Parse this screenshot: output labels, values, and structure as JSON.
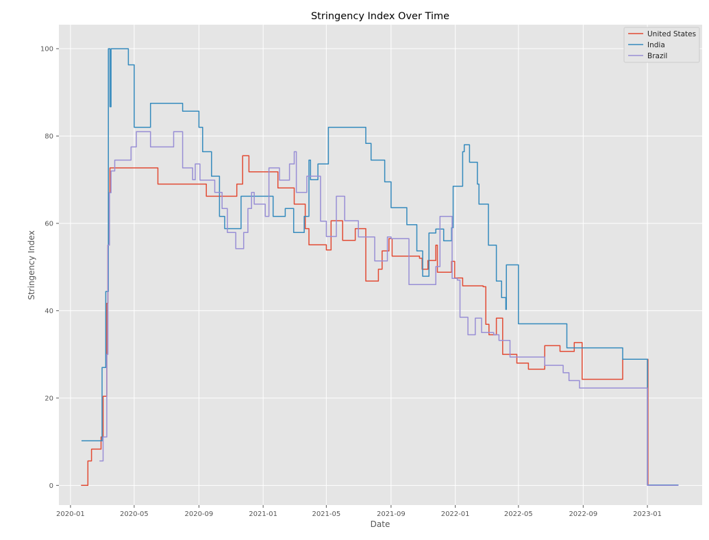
{
  "chart_data": {
    "type": "line",
    "title": "Stringency Index Over Time",
    "xlabel": "Date",
    "ylabel": "Stringency Index",
    "xlim": [
      "2019-12-10",
      "2023-04-15"
    ],
    "ylim": [
      -4.5,
      105.5
    ],
    "x_ticks": [
      "2020-01",
      "2020-05",
      "2020-09",
      "2021-01",
      "2021-05",
      "2021-09",
      "2022-01",
      "2022-05",
      "2022-09",
      "2023-01"
    ],
    "y_ticks": [
      0,
      20,
      40,
      60,
      80,
      100
    ],
    "grid": true,
    "legend_position": "top-right",
    "background_color": "#e5e5e5",
    "series": [
      {
        "name": "United States",
        "color": "#e24a33",
        "points": [
          [
            "2020-01-21",
            0
          ],
          [
            "2020-02-03",
            5.6
          ],
          [
            "2020-02-10",
            8.3
          ],
          [
            "2020-02-28",
            11.1
          ],
          [
            "2020-03-03",
            20.4
          ],
          [
            "2020-03-08",
            20.4
          ],
          [
            "2020-03-10",
            41.7
          ],
          [
            "2020-03-12",
            55
          ],
          [
            "2020-03-14",
            67
          ],
          [
            "2020-03-16",
            72.7
          ],
          [
            "2020-06-15",
            69
          ],
          [
            "2020-09-15",
            66.2
          ],
          [
            "2020-11-12",
            69
          ],
          [
            "2020-11-23",
            75.5
          ],
          [
            "2020-12-05",
            71.8
          ],
          [
            "2021-01-29",
            68.1
          ],
          [
            "2021-03-01",
            64.4
          ],
          [
            "2021-03-22",
            58.8
          ],
          [
            "2021-03-29",
            55.1
          ],
          [
            "2021-05-01",
            53.9
          ],
          [
            "2021-05-10",
            60.6
          ],
          [
            "2021-06-01",
            56.1
          ],
          [
            "2021-06-25",
            58.8
          ],
          [
            "2021-07-15",
            46.8
          ],
          [
            "2021-08-08",
            49.5
          ],
          [
            "2021-08-15",
            53.7
          ],
          [
            "2021-08-28",
            56.5
          ],
          [
            "2021-09-03",
            52.5
          ],
          [
            "2021-10-25",
            52
          ],
          [
            "2021-10-30",
            49.5
          ],
          [
            "2021-11-10",
            51.5
          ],
          [
            "2021-11-25",
            55
          ],
          [
            "2021-11-28",
            48.8
          ],
          [
            "2021-12-25",
            51.3
          ],
          [
            "2021-12-31",
            47.5
          ],
          [
            "2022-01-15",
            45.7
          ],
          [
            "2022-02-23",
            45.5
          ],
          [
            "2022-02-28",
            36.9
          ],
          [
            "2022-03-06",
            34.5
          ],
          [
            "2022-03-20",
            38.3
          ],
          [
            "2022-04-01",
            30
          ],
          [
            "2022-04-28",
            28
          ],
          [
            "2022-05-20",
            26.6
          ],
          [
            "2022-06-20",
            32
          ],
          [
            "2022-07-19",
            30.7
          ],
          [
            "2022-08-15",
            32.7
          ],
          [
            "2022-08-30",
            24.3
          ],
          [
            "2022-11-15",
            28.9
          ],
          [
            "2022-12-31",
            28.9
          ],
          [
            "2023-01-02",
            0.1
          ],
          [
            "2023-03-01",
            0.1
          ]
        ]
      },
      {
        "name": "India",
        "color": "#348abd",
        "points": [
          [
            "2020-01-22",
            10.2
          ],
          [
            "2020-02-28",
            10.2
          ],
          [
            "2020-03-01",
            27
          ],
          [
            "2020-03-08",
            44.4
          ],
          [
            "2020-03-13",
            100
          ],
          [
            "2020-03-16",
            86.7
          ],
          [
            "2020-03-18",
            100
          ],
          [
            "2020-04-20",
            96.3
          ],
          [
            "2020-05-01",
            82
          ],
          [
            "2020-06-01",
            87.5
          ],
          [
            "2020-08-01",
            85.7
          ],
          [
            "2020-09-01",
            82
          ],
          [
            "2020-09-08",
            76.4
          ],
          [
            "2020-09-25",
            70.8
          ],
          [
            "2020-10-10",
            61.6
          ],
          [
            "2020-10-20",
            58.8
          ],
          [
            "2020-11-20",
            66.2
          ],
          [
            "2021-01-20",
            61.6
          ],
          [
            "2021-02-12",
            63.4
          ],
          [
            "2021-02-28",
            57.9
          ],
          [
            "2021-03-20",
            61.6
          ],
          [
            "2021-03-29",
            74.5
          ],
          [
            "2021-04-01",
            70
          ],
          [
            "2021-04-15",
            73.6
          ],
          [
            "2021-05-05",
            82
          ],
          [
            "2021-07-15",
            78.3
          ],
          [
            "2021-07-25",
            74.5
          ],
          [
            "2021-08-20",
            69.5
          ],
          [
            "2021-09-01",
            63.6
          ],
          [
            "2021-10-01",
            59.7
          ],
          [
            "2021-10-20",
            53.7
          ],
          [
            "2021-10-31",
            47.9
          ],
          [
            "2021-11-12",
            57.8
          ],
          [
            "2021-11-25",
            58.7
          ],
          [
            "2021-12-10",
            56
          ],
          [
            "2021-12-25",
            59
          ],
          [
            "2021-12-28",
            68.5
          ],
          [
            "2022-01-15",
            76.4
          ],
          [
            "2022-01-18",
            78
          ],
          [
            "2022-01-28",
            74
          ],
          [
            "2022-02-12",
            69
          ],
          [
            "2022-02-15",
            64.4
          ],
          [
            "2022-03-05",
            55
          ],
          [
            "2022-03-20",
            46.8
          ],
          [
            "2022-03-30",
            43
          ],
          [
            "2022-04-07",
            40.3
          ],
          [
            "2022-04-08",
            50.5
          ],
          [
            "2022-05-01",
            37
          ],
          [
            "2022-08-01",
            31.5
          ],
          [
            "2022-11-15",
            28.9
          ],
          [
            "2022-12-31",
            28.9
          ],
          [
            "2023-01-01",
            0.1
          ],
          [
            "2023-03-01",
            0.1
          ]
        ]
      },
      {
        "name": "Brazil",
        "color": "#988ed5",
        "points": [
          [
            "2020-02-25",
            5.6
          ],
          [
            "2020-03-03",
            11.1
          ],
          [
            "2020-03-08",
            11.1
          ],
          [
            "2020-03-10",
            30
          ],
          [
            "2020-03-12",
            55
          ],
          [
            "2020-03-15",
            67
          ],
          [
            "2020-03-18",
            72
          ],
          [
            "2020-03-25",
            74.5
          ],
          [
            "2020-04-25",
            77.5
          ],
          [
            "2020-05-05",
            81
          ],
          [
            "2020-06-01",
            77.5
          ],
          [
            "2020-07-15",
            81
          ],
          [
            "2020-08-01",
            72.7
          ],
          [
            "2020-08-20",
            70
          ],
          [
            "2020-08-25",
            73.6
          ],
          [
            "2020-09-03",
            69.9
          ],
          [
            "2020-10-01",
            67.1
          ],
          [
            "2020-10-15",
            63.4
          ],
          [
            "2020-10-25",
            57.9
          ],
          [
            "2020-11-10",
            54.2
          ],
          [
            "2020-11-25",
            57.9
          ],
          [
            "2020-12-03",
            63.4
          ],
          [
            "2020-12-10",
            67.1
          ],
          [
            "2020-12-15",
            64.4
          ],
          [
            "2021-01-05",
            61.6
          ],
          [
            "2021-01-12",
            72.7
          ],
          [
            "2021-02-01",
            69.9
          ],
          [
            "2021-02-20",
            73.6
          ],
          [
            "2021-03-01",
            76.4
          ],
          [
            "2021-03-05",
            67.1
          ],
          [
            "2021-03-25",
            70.8
          ],
          [
            "2021-04-20",
            60.5
          ],
          [
            "2021-05-01",
            57.0
          ],
          [
            "2021-05-20",
            66.2
          ],
          [
            "2021-06-05",
            60.6
          ],
          [
            "2021-07-01",
            56.9
          ],
          [
            "2021-08-01",
            51.4
          ],
          [
            "2021-08-25",
            56.9
          ],
          [
            "2021-09-01",
            56.5
          ],
          [
            "2021-10-05",
            46
          ],
          [
            "2021-11-25",
            50.1
          ],
          [
            "2021-12-03",
            61.6
          ],
          [
            "2021-12-26",
            47.4
          ],
          [
            "2022-01-05",
            47.0
          ],
          [
            "2022-01-10",
            38.5
          ],
          [
            "2022-01-25",
            34.5
          ],
          [
            "2022-02-08",
            38.3
          ],
          [
            "2022-02-20",
            35.0
          ],
          [
            "2022-03-15",
            34.5
          ],
          [
            "2022-03-25",
            33.2
          ],
          [
            "2022-04-15",
            29.4
          ],
          [
            "2022-06-20",
            27.5
          ],
          [
            "2022-07-25",
            25.8
          ],
          [
            "2022-08-05",
            24
          ],
          [
            "2022-08-25",
            22.3
          ],
          [
            "2022-12-31",
            22.3
          ],
          [
            "2023-01-01",
            0
          ],
          [
            "2023-03-01",
            0
          ]
        ]
      }
    ]
  }
}
